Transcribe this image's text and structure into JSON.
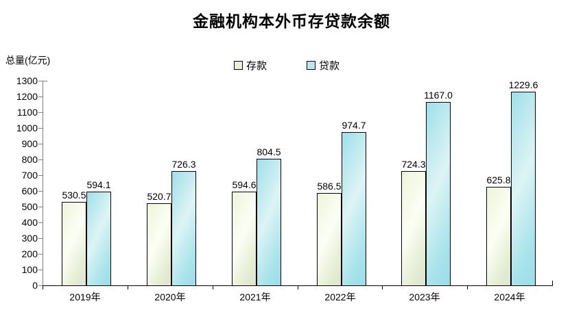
{
  "chart_data": {
    "type": "bar",
    "title": "金融机构本外币存贷款余额",
    "y_axis_title": "总量(亿元)",
    "categories": [
      "2019年",
      "2020年",
      "2021年",
      "2022年",
      "2023年",
      "2024年"
    ],
    "series": [
      {
        "name": "存款",
        "values": [
          530.5,
          520.7,
          594.6,
          586.5,
          724.3,
          625.8
        ],
        "labels": [
          "530.5",
          "520.7",
          "594.6",
          "586.5",
          "724.3",
          "625.8"
        ],
        "swatch_color": "#e6efd7",
        "gradient": [
          "#edf5da",
          "#fcfef5",
          "#e4edd2",
          "#dde3d4"
        ]
      },
      {
        "name": "贷款",
        "values": [
          594.1,
          726.3,
          804.5,
          974.7,
          1167.0,
          1229.6
        ],
        "labels": [
          "594.1",
          "726.3",
          "804.5",
          "974.7",
          "1167.0",
          "1229.6"
        ],
        "swatch_color": "#bce6ef",
        "gradient": [
          "#9fdfe9",
          "#ddf4f5",
          "#a9e3eb",
          "#9bdce7"
        ]
      }
    ],
    "ylim": [
      0,
      1300
    ],
    "y_tick_step": 100,
    "y_tick_labels": [
      "0",
      "100",
      "200",
      "300",
      "400",
      "500",
      "600",
      "700",
      "800",
      "900",
      "1000",
      "1100",
      "1200",
      "1300"
    ],
    "grid": false,
    "legend_position": "top",
    "axis_colors": {
      "y_axis": "#808080",
      "x_axis": "#000000"
    },
    "bar_border_color": "#000000",
    "text_color": "#000000",
    "background": "#ffffff"
  }
}
